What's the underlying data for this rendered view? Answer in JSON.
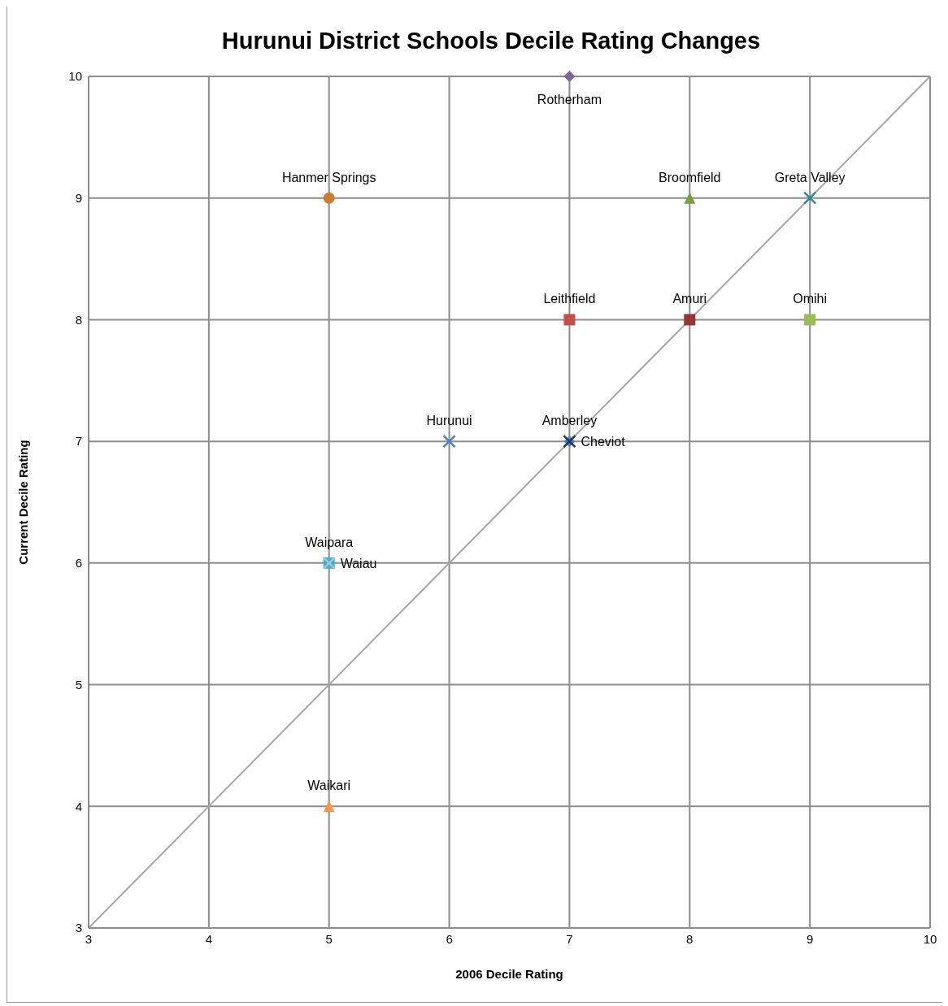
{
  "chart_data": {
    "type": "scatter",
    "title": "Hurunui District Schools Decile Rating Changes",
    "xlabel": "2006 Decile Rating",
    "ylabel": "Current Decile Rating",
    "xlim": [
      3,
      10
    ],
    "xticks": [
      3,
      4,
      5,
      6,
      7,
      8,
      9,
      10
    ],
    "ylim": [
      3,
      10
    ],
    "yticks": [
      3,
      4,
      5,
      6,
      7,
      8,
      9,
      10
    ],
    "grid": true,
    "legend": false,
    "series": [
      {
        "type": "line",
        "color": "#a6a6a6",
        "x": [
          3,
          10
        ],
        "values": [
          3,
          10
        ]
      },
      {
        "name": "Rotherham",
        "color": "#8064a2",
        "x": [
          7
        ],
        "values": [
          10
        ],
        "marker": "diamond"
      },
      {
        "name": "Hanmer Springs",
        "color": "#d07a34",
        "x": [
          5
        ],
        "values": [
          9
        ],
        "marker": "circle"
      },
      {
        "name": "Broomfield",
        "color": "#77a03c",
        "x": [
          8
        ],
        "values": [
          9
        ],
        "marker": "triangle"
      },
      {
        "name": "Greta Valley",
        "color": "#31859c",
        "x": [
          9
        ],
        "values": [
          9
        ],
        "marker": "cross"
      },
      {
        "name": "Leithfield",
        "color": "#c0504d",
        "x": [
          7
        ],
        "values": [
          8
        ],
        "marker": "square"
      },
      {
        "name": "Amuri",
        "color": "#953735",
        "x": [
          8
        ],
        "values": [
          8
        ],
        "marker": "square"
      },
      {
        "name": "Omihi",
        "color": "#9bbb59",
        "x": [
          9
        ],
        "values": [
          8
        ],
        "marker": "square"
      },
      {
        "name": "Hurunui",
        "color": "#4f81bd",
        "x": [
          6
        ],
        "values": [
          7
        ],
        "marker": "cross"
      },
      {
        "name": "Amberley",
        "color": "#4f81bd",
        "x": [
          7
        ],
        "values": [
          7
        ],
        "marker": "diamond"
      },
      {
        "name": "Cheviot",
        "color": "#1f3864",
        "x": [
          7
        ],
        "values": [
          7
        ],
        "marker": "cross"
      },
      {
        "name": "Waipara",
        "color": "#4bacc6",
        "x": [
          5
        ],
        "values": [
          6
        ],
        "marker": "square"
      },
      {
        "name": "Waiau",
        "color": "#93cddd",
        "x": [
          5
        ],
        "values": [
          6
        ],
        "marker": "cross"
      },
      {
        "name": "Waikari",
        "color": "#f79646",
        "x": [
          5
        ],
        "values": [
          4
        ],
        "marker": "triangle"
      }
    ]
  }
}
